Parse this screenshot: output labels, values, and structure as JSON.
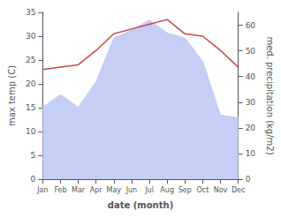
{
  "chart_data": {
    "type": "line",
    "categories": [
      "Jan",
      "Feb",
      "Mar",
      "Apr",
      "May",
      "Jun",
      "Jul",
      "Aug",
      "Sep",
      "Oct",
      "Nov",
      "Dec"
    ],
    "series": [
      {
        "type": "line",
        "color": "#cc4444",
        "values": [
          23,
          23.5,
          24,
          27,
          30.5,
          31.5,
          32.5,
          33.5,
          30.5,
          30,
          27,
          23.5
        ]
      },
      {
        "type": "area",
        "color": "#c5cef5",
        "axis": "y2",
        "values": [
          28,
          33,
          28,
          38,
          55,
          58,
          62,
          57,
          55,
          46,
          25,
          24
        ]
      }
    ],
    "xlabel": "date (month)",
    "ylabel": "max temp (C)",
    "y2label": "med. precipitation (kg/m2)",
    "ylim": [
      0,
      35
    ],
    "yticks": [
      0,
      5,
      10,
      15,
      20,
      25,
      30,
      35
    ],
    "y2lim": [
      0,
      65
    ],
    "y2ticks": [
      0,
      10,
      20,
      30,
      40,
      50,
      60
    ],
    "grid": false
  }
}
